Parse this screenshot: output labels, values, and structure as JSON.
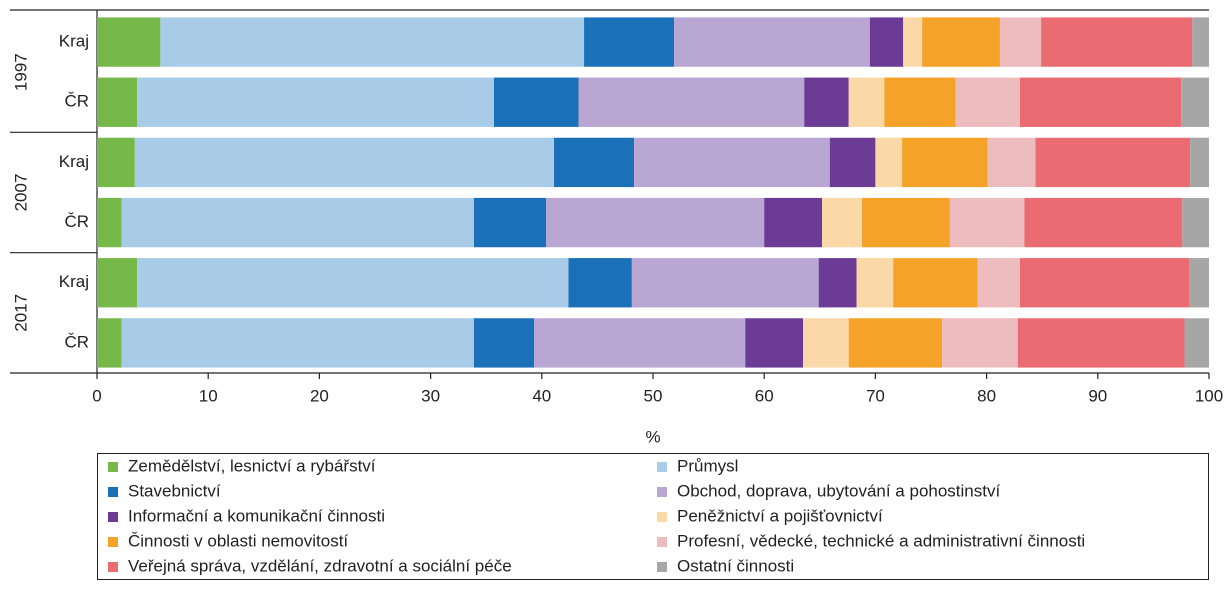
{
  "chart_data": {
    "type": "stacked_barh",
    "x_label": "%",
    "groups": [
      "1997",
      "2007",
      "2017"
    ],
    "categories": [
      "Kraj",
      "ČR",
      "Kraj",
      "ČR",
      "Kraj",
      "ČR"
    ],
    "xlim": [
      0,
      100
    ],
    "xticks": [
      0,
      10,
      20,
      30,
      40,
      50,
      60,
      70,
      80,
      90,
      100
    ],
    "grid": false,
    "legend": "bottom",
    "series": [
      {
        "name": "Zemědělství, lesnictví a rybářství",
        "color": "#77b84a",
        "values": [
          5.7,
          3.6,
          3.4,
          2.2,
          3.6,
          2.2
        ]
      },
      {
        "name": "Průmysl",
        "color": "#a8cbe8",
        "values": [
          38.1,
          32.1,
          37.7,
          31.7,
          38.8,
          31.7
        ]
      },
      {
        "name": "Stavebnictví",
        "color": "#1a71b8",
        "values": [
          8.1,
          7.6,
          7.2,
          6.5,
          5.7,
          5.4
        ]
      },
      {
        "name": "Obchod, doprava, ubytování a pohostinství",
        "color": "#b9a6d2",
        "values": [
          17.6,
          20.3,
          17.6,
          19.6,
          16.8,
          19.0
        ]
      },
      {
        "name": "Informační a komunikační činnosti",
        "color": "#6b3b96",
        "values": [
          3.0,
          4.0,
          4.1,
          5.2,
          3.4,
          5.2
        ]
      },
      {
        "name": "Peněžnictví a pojišťovnictví",
        "color": "#fbd8a8",
        "values": [
          1.7,
          3.2,
          2.4,
          3.6,
          3.3,
          4.1
        ]
      },
      {
        "name": "Činnosti v oblasti nemovitostí",
        "color": "#f5a228",
        "values": [
          7.0,
          6.4,
          7.7,
          7.9,
          7.6,
          8.4
        ]
      },
      {
        "name": "Profesní, vědecké, technické a administrativní činnosti",
        "color": "#ecbcbf",
        "values": [
          3.7,
          5.8,
          4.3,
          6.7,
          3.8,
          6.8
        ]
      },
      {
        "name": "Veřejná správa, vzdělání, zdravotní a sociální péče",
        "color": "#eb6b72",
        "values": [
          13.6,
          14.5,
          13.9,
          14.2,
          15.2,
          15.0
        ]
      },
      {
        "name": "Ostatní činnosti",
        "color": "#a6a6a6",
        "values": [
          1.5,
          2.5,
          1.7,
          2.4,
          1.8,
          2.2
        ]
      }
    ]
  }
}
